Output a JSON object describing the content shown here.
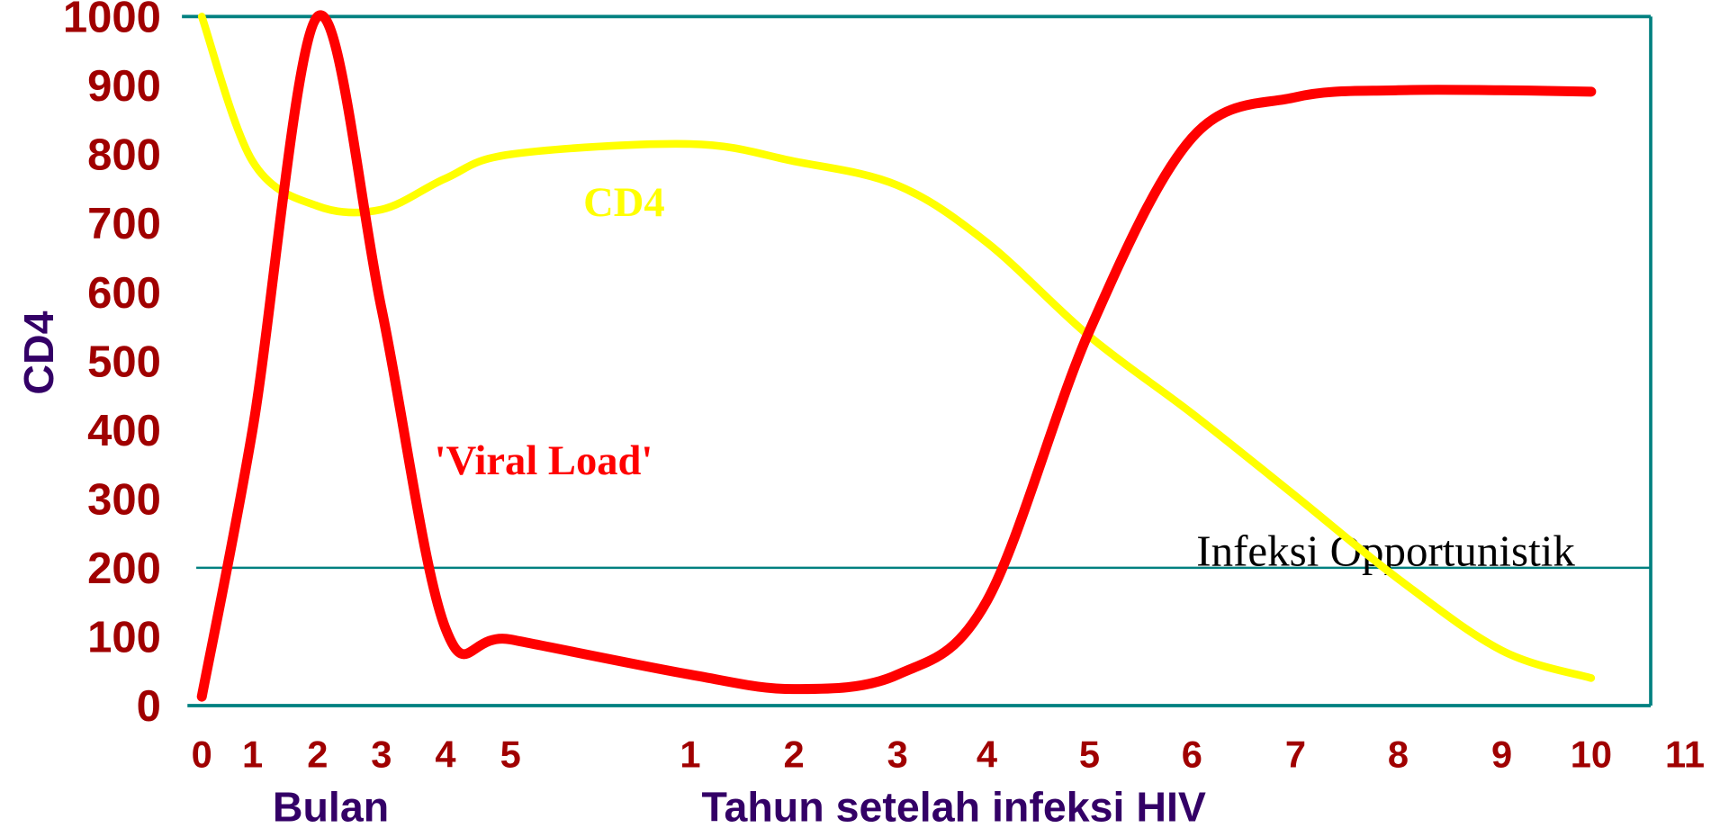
{
  "chart_data": {
    "type": "line",
    "categories": [
      "0",
      "1",
      "2",
      "3",
      "4",
      "5",
      "1",
      "2",
      "3",
      "4",
      "5",
      "6",
      "7",
      "8",
      "9",
      "10",
      "11"
    ],
    "series": [
      {
        "name": "CD4",
        "color": "#ffff00",
        "values": [
          1000,
          790,
          725,
          720,
          765,
          800,
          815,
          790,
          755,
          672,
          536,
          424,
          304,
          184,
          80,
          40,
          null
        ]
      },
      {
        "name": "'Viral Load'",
        "color": "#ff0000",
        "values": [
          13,
          400,
          1000,
          576,
          112,
          96,
          45,
          24,
          45,
          152,
          544,
          824,
          883,
          893,
          893,
          891,
          null
        ]
      }
    ],
    "ylim": [
      0,
      1000
    ],
    "yticks": [
      0,
      100,
      200,
      300,
      400,
      500,
      600,
      700,
      800,
      900,
      1000
    ],
    "ylabel": "CD4",
    "xlabel_months": "Bulan",
    "xlabel_years": "Tahun setelah infeksi HIV",
    "threshold": {
      "value": 200,
      "label": "Infeksi Opportunistik",
      "color": "#008080"
    },
    "frame_color": "#008080"
  }
}
